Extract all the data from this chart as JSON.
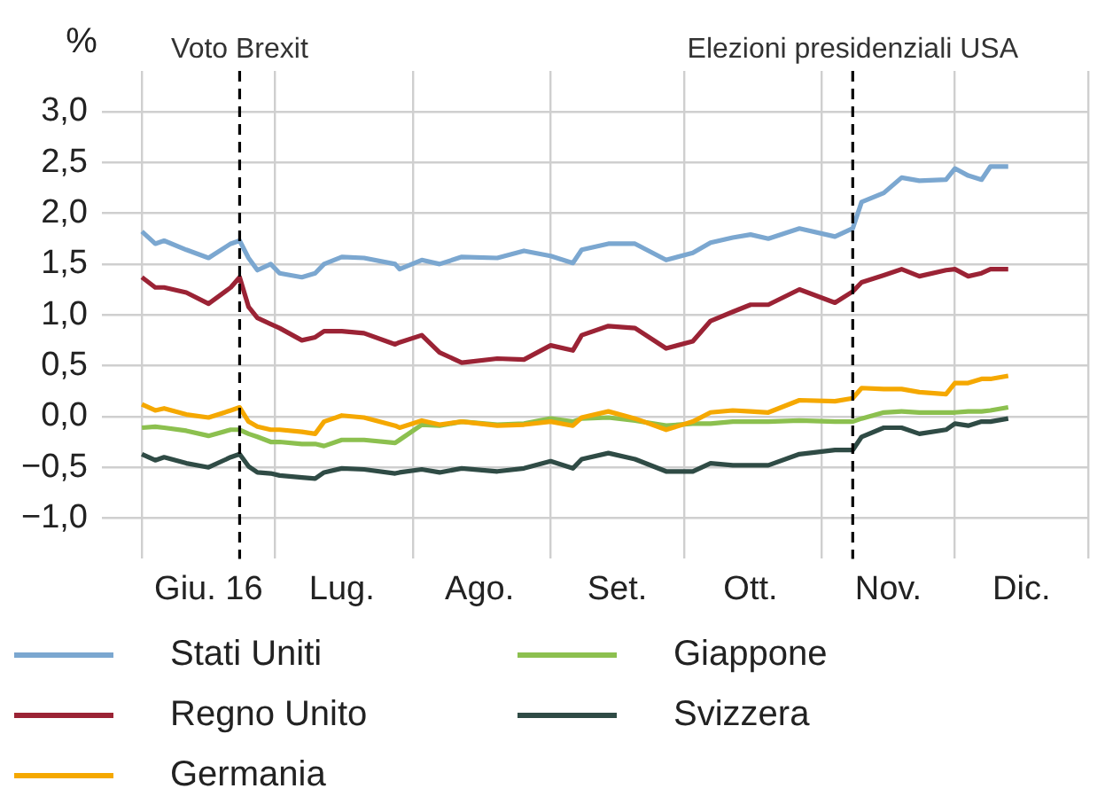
{
  "chart_data": {
    "type": "line",
    "ylabel": "%",
    "x": [
      "--06-01",
      "--06-04",
      "--06-06",
      "--06-11",
      "--06-16",
      "--06-21",
      "--06-23",
      "--06-25",
      "--06-27",
      "--06-30",
      "--07-02",
      "--07-07",
      "--07-10",
      "--07-12",
      "--07-16",
      "--07-21",
      "--07-28",
      "--07-29",
      "--08-03",
      "--08-07",
      "--08-12",
      "--08-20",
      "--08-26",
      "--09-01",
      "--09-06",
      "--09-08",
      "--09-14",
      "--09-20",
      "--09-27",
      "--10-03",
      "--10-07",
      "--10-12",
      "--10-16",
      "--10-20",
      "--10-27",
      "--11-04",
      "--11-08",
      "--11-10",
      "--11-15",
      "--11-19",
      "--11-23",
      "--11-29",
      "--12-01",
      "--12-04",
      "--12-07",
      "--12-09",
      "--12-13"
    ],
    "series": [
      {
        "name": "Stati Uniti",
        "color": "#7ba7d0",
        "values": [
          1.82,
          1.7,
          1.73,
          1.64,
          1.56,
          1.7,
          1.73,
          1.56,
          1.44,
          1.5,
          1.41,
          1.37,
          1.41,
          1.5,
          1.57,
          1.56,
          1.5,
          1.45,
          1.54,
          1.5,
          1.57,
          1.56,
          1.63,
          1.58,
          1.51,
          1.64,
          1.7,
          1.7,
          1.54,
          1.61,
          1.71,
          1.76,
          1.79,
          1.75,
          1.85,
          1.77,
          1.85,
          2.11,
          2.2,
          2.35,
          2.32,
          2.33,
          2.44,
          2.37,
          2.33,
          2.46,
          2.46
        ]
      },
      {
        "name": "Regno Unito",
        "color": "#9b2335",
        "values": [
          1.37,
          1.27,
          1.27,
          1.22,
          1.11,
          1.27,
          1.37,
          1.08,
          0.97,
          0.91,
          0.87,
          0.75,
          0.78,
          0.84,
          0.84,
          0.82,
          0.71,
          0.73,
          0.8,
          0.63,
          0.53,
          0.57,
          0.56,
          0.7,
          0.65,
          0.8,
          0.89,
          0.87,
          0.67,
          0.74,
          0.94,
          1.03,
          1.1,
          1.1,
          1.25,
          1.12,
          1.23,
          1.32,
          1.39,
          1.45,
          1.38,
          1.44,
          1.45,
          1.38,
          1.41,
          1.45,
          1.45
        ]
      },
      {
        "name": "Germania",
        "color": "#f5a800",
        "values": [
          0.12,
          0.06,
          0.08,
          0.02,
          -0.01,
          0.06,
          0.09,
          -0.05,
          -0.1,
          -0.13,
          -0.13,
          -0.15,
          -0.17,
          -0.05,
          0.01,
          -0.01,
          -0.09,
          -0.11,
          -0.04,
          -0.08,
          -0.05,
          -0.09,
          -0.08,
          -0.05,
          -0.09,
          -0.01,
          0.05,
          -0.02,
          -0.13,
          -0.05,
          0.04,
          0.06,
          0.05,
          0.04,
          0.16,
          0.15,
          0.18,
          0.28,
          0.27,
          0.27,
          0.24,
          0.22,
          0.33,
          0.33,
          0.37,
          0.37,
          0.4
        ]
      },
      {
        "name": "Giappone",
        "color": "#8cc04f",
        "values": [
          -0.11,
          -0.1,
          -0.11,
          -0.14,
          -0.19,
          -0.13,
          -0.13,
          -0.17,
          -0.2,
          -0.25,
          -0.25,
          -0.27,
          -0.27,
          -0.29,
          -0.23,
          -0.23,
          -0.26,
          -0.23,
          -0.08,
          -0.09,
          -0.05,
          -0.08,
          -0.07,
          -0.02,
          -0.05,
          -0.02,
          -0.01,
          -0.04,
          -0.09,
          -0.07,
          -0.07,
          -0.05,
          -0.05,
          -0.05,
          -0.04,
          -0.05,
          -0.05,
          -0.02,
          0.04,
          0.05,
          0.04,
          0.04,
          0.04,
          0.05,
          0.05,
          0.06,
          0.09
        ]
      },
      {
        "name": "Svizzera",
        "color": "#2f4b45",
        "values": [
          -0.37,
          -0.43,
          -0.4,
          -0.46,
          -0.5,
          -0.4,
          -0.37,
          -0.49,
          -0.55,
          -0.56,
          -0.58,
          -0.6,
          -0.61,
          -0.55,
          -0.51,
          -0.52,
          -0.56,
          -0.55,
          -0.52,
          -0.55,
          -0.51,
          -0.54,
          -0.51,
          -0.44,
          -0.51,
          -0.42,
          -0.36,
          -0.42,
          -0.54,
          -0.54,
          -0.46,
          -0.48,
          -0.48,
          -0.48,
          -0.37,
          -0.33,
          -0.33,
          -0.2,
          -0.11,
          -0.11,
          -0.17,
          -0.13,
          -0.07,
          -0.09,
          -0.05,
          -0.05,
          -0.02
        ]
      }
    ],
    "xlim": [
      "--05-23",
      "--12-31"
    ],
    "xticks": [
      {
        "value": "--06-01",
        "label": null
      },
      {
        "value": "--06-16",
        "label": "Giu. 16"
      },
      {
        "value": "--07-01",
        "label": null
      },
      {
        "value": "--07-16",
        "label": "Lug."
      },
      {
        "value": "--08-01",
        "label": null
      },
      {
        "value": "--08-16",
        "label": "Ago."
      },
      {
        "value": "--09-01",
        "label": null
      },
      {
        "value": "--09-16",
        "label": "Set."
      },
      {
        "value": "--10-01",
        "label": null
      },
      {
        "value": "--10-16",
        "label": "Ott."
      },
      {
        "value": "--11-01",
        "label": null
      },
      {
        "value": "--11-16",
        "label": "Nov."
      },
      {
        "value": "--12-01",
        "label": null
      },
      {
        "value": "--12-16",
        "label": "Dic."
      },
      {
        "value": "--12-31",
        "label": null
      }
    ],
    "ylim": [
      -1.4,
      3.4
    ],
    "yticks": [
      {
        "value": -1,
        "label": "−1,0"
      },
      {
        "value": -0.5,
        "label": "−0,5"
      },
      {
        "value": 0,
        "label": "0,0"
      },
      {
        "value": 0.5,
        "label": "0,5"
      },
      {
        "value": 1,
        "label": "1,0"
      },
      {
        "value": 1.5,
        "label": "1,5"
      },
      {
        "value": 2,
        "label": "2,0"
      },
      {
        "value": 2.5,
        "label": "2,5"
      },
      {
        "value": 3,
        "label": "3,0"
      }
    ],
    "ref_lines": [
      {
        "axis": "x",
        "value": "--06-23",
        "label": "Voto Brexit",
        "color": "#000000",
        "line_style": "dashed"
      },
      {
        "axis": "x",
        "value": "--11-08",
        "label": "Elezioni presidenziali USA",
        "color": "#000000",
        "line_style": "dashed"
      }
    ],
    "grid": true,
    "legend": "bottom",
    "marker": "none",
    "line_style": "solid"
  }
}
